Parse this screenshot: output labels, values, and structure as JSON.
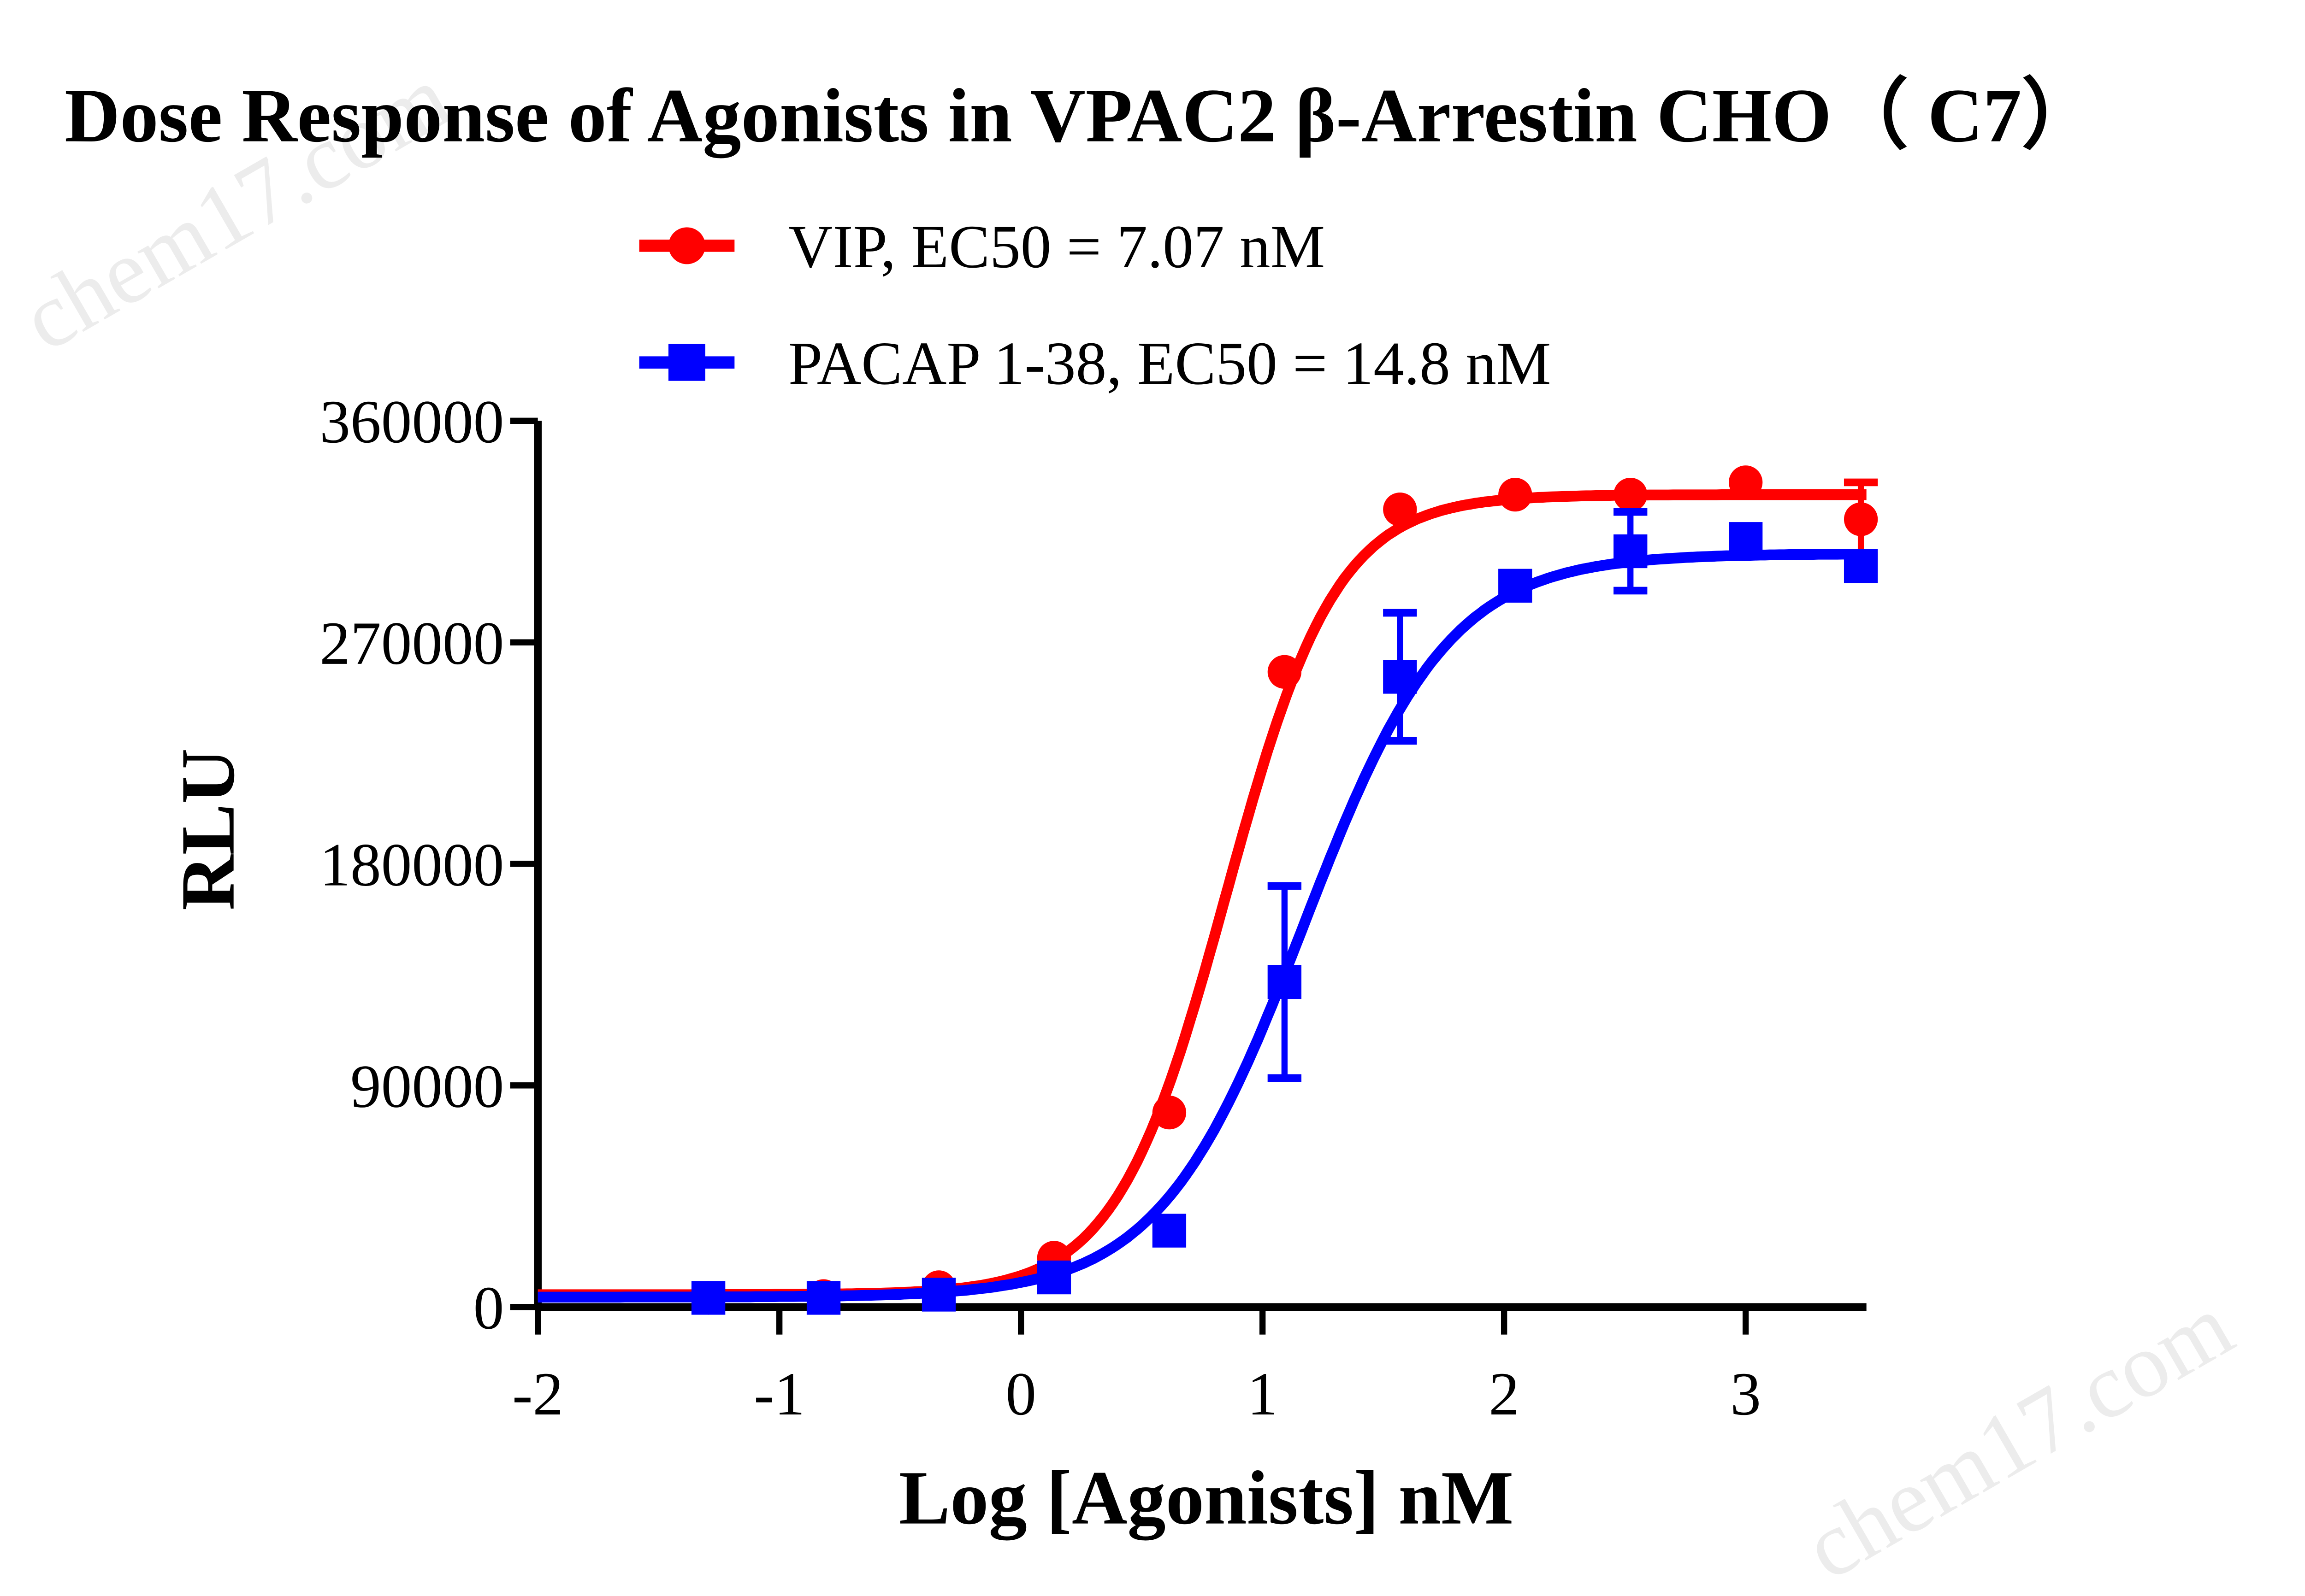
{
  "chart_data": {
    "type": "scatter",
    "title": "Dose Response of Agonists in VPAC2 β-Arrestin CHO（ C7）",
    "xlabel": "Log [Agonists] nM",
    "ylabel": "RLU",
    "xlim": [
      -2,
      3.5
    ],
    "ylim": [
      0,
      360000
    ],
    "x_ticks": [
      "-2",
      "-1",
      "0",
      "1",
      "2",
      "3"
    ],
    "y_ticks": [
      "0",
      "90000",
      "180000",
      "270000",
      "360000"
    ],
    "grid": false,
    "legend_position": "top",
    "x": [
      -1.294,
      -0.817,
      -0.34,
      0.137,
      0.614,
      1.091,
      1.569,
      2.046,
      2.523,
      3.0,
      3.477
    ],
    "series": [
      {
        "name": "VIP, EC50 = 7.07 nM",
        "color": "#ff0000",
        "marker": "circle",
        "values": [
          3700,
          4400,
          8000,
          20000,
          79000,
          258000,
          324000,
          330000,
          330000,
          335000,
          320000
        ],
        "errors": [
          0,
          0,
          0,
          0,
          0,
          0,
          0,
          0,
          0,
          0,
          15000
        ],
        "fit": {
          "bottom": 5000,
          "top": 330000,
          "logEC50": 0.849,
          "hill": 1.9
        }
      },
      {
        "name": "PACAP 1-38, EC50 = 14.8 nM",
        "color": "#0000ff",
        "marker": "square",
        "values": [
          3700,
          3700,
          5000,
          12000,
          31000,
          132000,
          256000,
          293000,
          307000,
          312000,
          301000
        ],
        "errors": [
          0,
          0,
          0,
          0,
          0,
          39000,
          26000,
          0,
          16000,
          0,
          0
        ],
        "fit": {
          "bottom": 4000,
          "top": 306000,
          "logEC50": 1.17,
          "hill": 1.45
        }
      }
    ]
  },
  "watermark": "chem17.com"
}
